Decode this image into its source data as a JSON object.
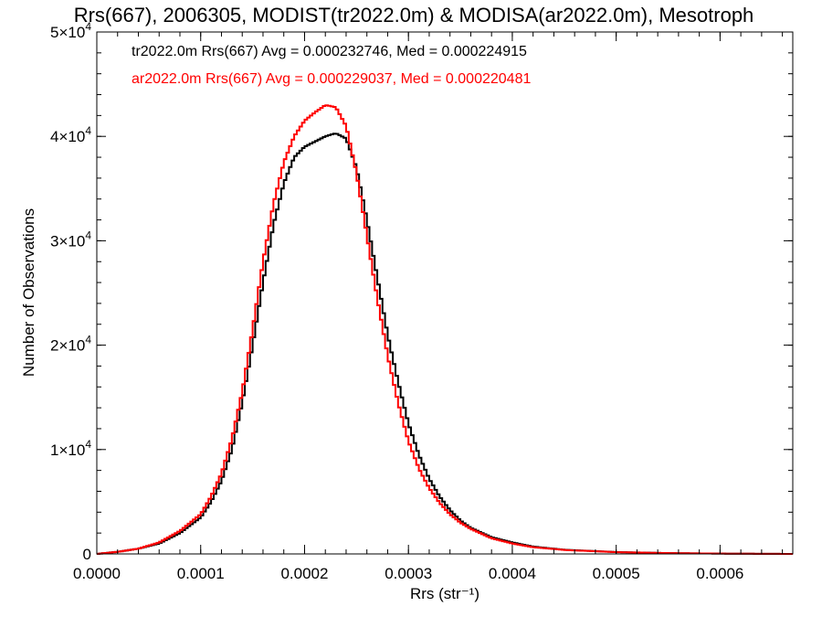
{
  "chart_data": {
    "type": "histogram",
    "title": "Rrs(667), 2006305, MODIST(tr2022.0m) & MODISA(ar2022.0m), Mesotroph",
    "xlabel": "Rrs (str⁻¹)",
    "ylabel": "Number of Observations",
    "xlim": [
      0.0,
      0.00067
    ],
    "ylim": [
      0,
      50000
    ],
    "grid": false,
    "legend_position": "top-left",
    "x_tick_labels": [
      "0.0000",
      "0.0001",
      "0.0002",
      "0.0003",
      "0.0004",
      "0.0005",
      "0.0006"
    ],
    "x_ticks": [
      0.0,
      0.0001,
      0.0002,
      0.0003,
      0.0004,
      0.0005,
      0.0006
    ],
    "y_ticks": [
      {
        "value": 0,
        "base": "0",
        "exp": ""
      },
      {
        "value": 10000,
        "base": "1×10",
        "exp": "4"
      },
      {
        "value": 20000,
        "base": "2×10",
        "exp": "4"
      },
      {
        "value": 30000,
        "base": "3×10",
        "exp": "4"
      },
      {
        "value": 40000,
        "base": "4×10",
        "exp": "4"
      },
      {
        "value": 50000,
        "base": "5×10",
        "exp": "4"
      }
    ],
    "annotations": [
      "tr2022.0m Rrs(667) Avg = 0.000232746, Med = 0.000224915",
      "ar2022.0m Rrs(667) Avg = 0.000229037, Med = 0.000220481"
    ],
    "series": [
      {
        "color": "#000000",
        "x": [
          0.0,
          2e-05,
          4e-05,
          6e-05,
          8e-05,
          0.0001,
          0.00011,
          0.00012,
          0.00013,
          0.00014,
          0.00015,
          0.00016,
          0.00017,
          0.00018,
          0.00019,
          0.0002,
          0.00021,
          0.00022,
          0.00023,
          0.00024,
          0.00025,
          0.00026,
          0.00027,
          0.00028,
          0.00029,
          0.0003,
          0.00031,
          0.00032,
          0.00033,
          0.00034,
          0.00035,
          0.00036,
          0.00038,
          0.0004,
          0.00042,
          0.00045,
          0.0005,
          0.00055,
          0.0006,
          0.00067
        ],
        "y": [
          0,
          200,
          500,
          1000,
          2000,
          3500,
          5000,
          7000,
          10000,
          14500,
          20000,
          26000,
          31500,
          35500,
          38000,
          39000,
          39500,
          40000,
          40300,
          39800,
          37000,
          32000,
          26500,
          21000,
          16500,
          12500,
          9500,
          7200,
          5500,
          4200,
          3200,
          2500,
          1600,
          1100,
          700,
          400,
          180,
          80,
          30,
          0
        ]
      },
      {
        "color": "#ff0000",
        "x": [
          0.0,
          2e-05,
          4e-05,
          6e-05,
          8e-05,
          0.0001,
          0.00011,
          0.00012,
          0.00013,
          0.00014,
          0.00015,
          0.00016,
          0.00017,
          0.00018,
          0.00019,
          0.0002,
          0.00021,
          0.00022,
          0.00023,
          0.00024,
          0.00025,
          0.00026,
          0.00027,
          0.00028,
          0.00029,
          0.0003,
          0.00031,
          0.00032,
          0.00033,
          0.00034,
          0.00035,
          0.00036,
          0.00038,
          0.0004,
          0.00042,
          0.00045,
          0.0005,
          0.00055,
          0.0006,
          0.00067
        ],
        "y": [
          0,
          200,
          500,
          1100,
          2200,
          3800,
          5500,
          7700,
          11000,
          15500,
          21500,
          28000,
          33500,
          37500,
          40000,
          41500,
          42300,
          43000,
          42800,
          41000,
          36500,
          30500,
          24500,
          19000,
          14500,
          10800,
          8200,
          6300,
          4900,
          3800,
          3000,
          2400,
          1500,
          1000,
          650,
          380,
          170,
          80,
          30,
          0
        ]
      }
    ]
  }
}
